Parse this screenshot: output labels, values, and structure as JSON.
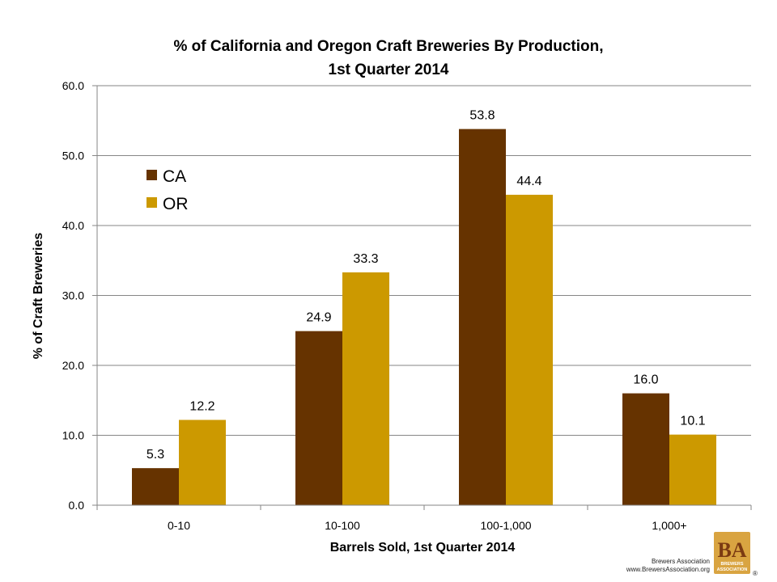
{
  "chart_data": {
    "type": "bar",
    "title_line1": "% of California and Oregon Craft Breweries By Production,",
    "title_line2": "1st Quarter 2014",
    "xlabel": "Barrels Sold, 1st Quarter 2014",
    "ylabel": "% of Craft Breweries",
    "categories": [
      "0-10",
      "10-100",
      "100-1,000",
      "1,000+"
    ],
    "ylim": [
      0,
      60
    ],
    "yticks": [
      "0.0",
      "10.0",
      "20.0",
      "30.0",
      "40.0",
      "50.0",
      "60.0"
    ],
    "grid": true,
    "legend_position": "upper-left inside plot",
    "series": [
      {
        "name": "CA",
        "color": "#663300",
        "values": [
          5.3,
          24.9,
          53.8,
          16.0
        ],
        "labels": [
          "5.3",
          "24.9",
          "53.8",
          "16.0"
        ]
      },
      {
        "name": "OR",
        "color": "#CC9900",
        "values": [
          12.2,
          33.3,
          44.4,
          10.1
        ],
        "labels": [
          "12.2",
          "33.3",
          "44.4",
          "10.1"
        ]
      }
    ]
  },
  "logo": {
    "org_name": "Brewers Association",
    "url": "www.BrewersAssociation.org",
    "mark_letters": "BA",
    "mark_word_1": "BREWERS",
    "mark_word_2": "ASSOCIATION",
    "registered": "®",
    "mark_color": "#d9a441"
  }
}
